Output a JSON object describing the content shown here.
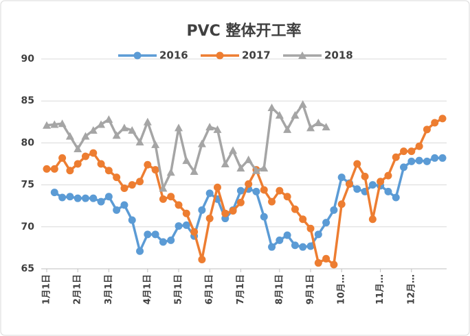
{
  "chart_data": {
    "type": "line",
    "title": "PVC 整体开工率",
    "categories": [
      "1月1日",
      null,
      null,
      null,
      "2月1日",
      null,
      null,
      null,
      "3月1日",
      null,
      null,
      null,
      null,
      "4月1日",
      null,
      null,
      null,
      "5月1日",
      null,
      null,
      null,
      "6月1日",
      null,
      null,
      null,
      "7月1日",
      null,
      null,
      null,
      null,
      "8月1日",
      null,
      null,
      null,
      "9月1日",
      null,
      null,
      null,
      "10月…",
      null,
      null,
      null,
      null,
      "11月…",
      null,
      null,
      null,
      "12月…",
      null,
      null,
      null,
      null
    ],
    "series": [
      {
        "name": "2016",
        "color": "#5b9bd5",
        "marker": "circle",
        "values": [
          null,
          74.1,
          73.5,
          73.6,
          73.4,
          73.4,
          73.4,
          73.0,
          73.6,
          72.0,
          72.6,
          70.8,
          67.1,
          69.1,
          69.1,
          68.2,
          68.4,
          70.1,
          70.2,
          68.9,
          72.0,
          74.0,
          73.3,
          71.0,
          72.0,
          74.3,
          74.5,
          74.2,
          71.2,
          67.6,
          68.4,
          69.0,
          67.8,
          67.6,
          67.7,
          69.1,
          70.5,
          72.0,
          75.9,
          75.2,
          74.5,
          74.2,
          75.0,
          74.9,
          74.2,
          73.5,
          77.1,
          77.8,
          77.9,
          77.8,
          78.2,
          78.2
        ]
      },
      {
        "name": "2017",
        "color": "#ed7d31",
        "marker": "circle",
        "values": [
          76.9,
          76.9,
          78.2,
          76.7,
          77.5,
          78.4,
          78.8,
          77.5,
          76.7,
          75.9,
          74.6,
          75.0,
          75.4,
          77.4,
          76.8,
          73.3,
          73.6,
          72.6,
          71.6,
          69.4,
          66.1,
          71.0,
          74.7,
          71.6,
          71.9,
          72.9,
          75.1,
          76.8,
          74.4,
          73.0,
          74.3,
          73.6,
          72.1,
          70.9,
          69.8,
          65.7,
          66.2,
          65.5,
          72.7,
          75.1,
          77.5,
          76.0,
          70.9,
          75.4,
          76.1,
          78.3,
          79.0,
          79.0,
          79.6,
          81.6,
          82.4,
          82.9
        ]
      },
      {
        "name": "2018",
        "color": "#a5a5a5",
        "marker": "triangle",
        "values": [
          82.1,
          82.2,
          82.3,
          80.8,
          79.3,
          80.8,
          81.5,
          82.2,
          82.8,
          80.9,
          81.8,
          81.5,
          80.1,
          82.5,
          79.8,
          74.6,
          76.5,
          81.8,
          77.9,
          76.6,
          79.9,
          81.9,
          81.6,
          77.5,
          79.1,
          77.0,
          78.0,
          76.7,
          77.0,
          84.2,
          83.3,
          81.6,
          83.3,
          84.6,
          81.8,
          82.4,
          81.9,
          null,
          null,
          null,
          null,
          null,
          null,
          null,
          null,
          null,
          null,
          null,
          null,
          null,
          null,
          null
        ]
      }
    ],
    "ylim": [
      65,
      90
    ],
    "yticks": [
      65,
      70,
      75,
      80,
      85,
      90
    ],
    "grid": true
  }
}
